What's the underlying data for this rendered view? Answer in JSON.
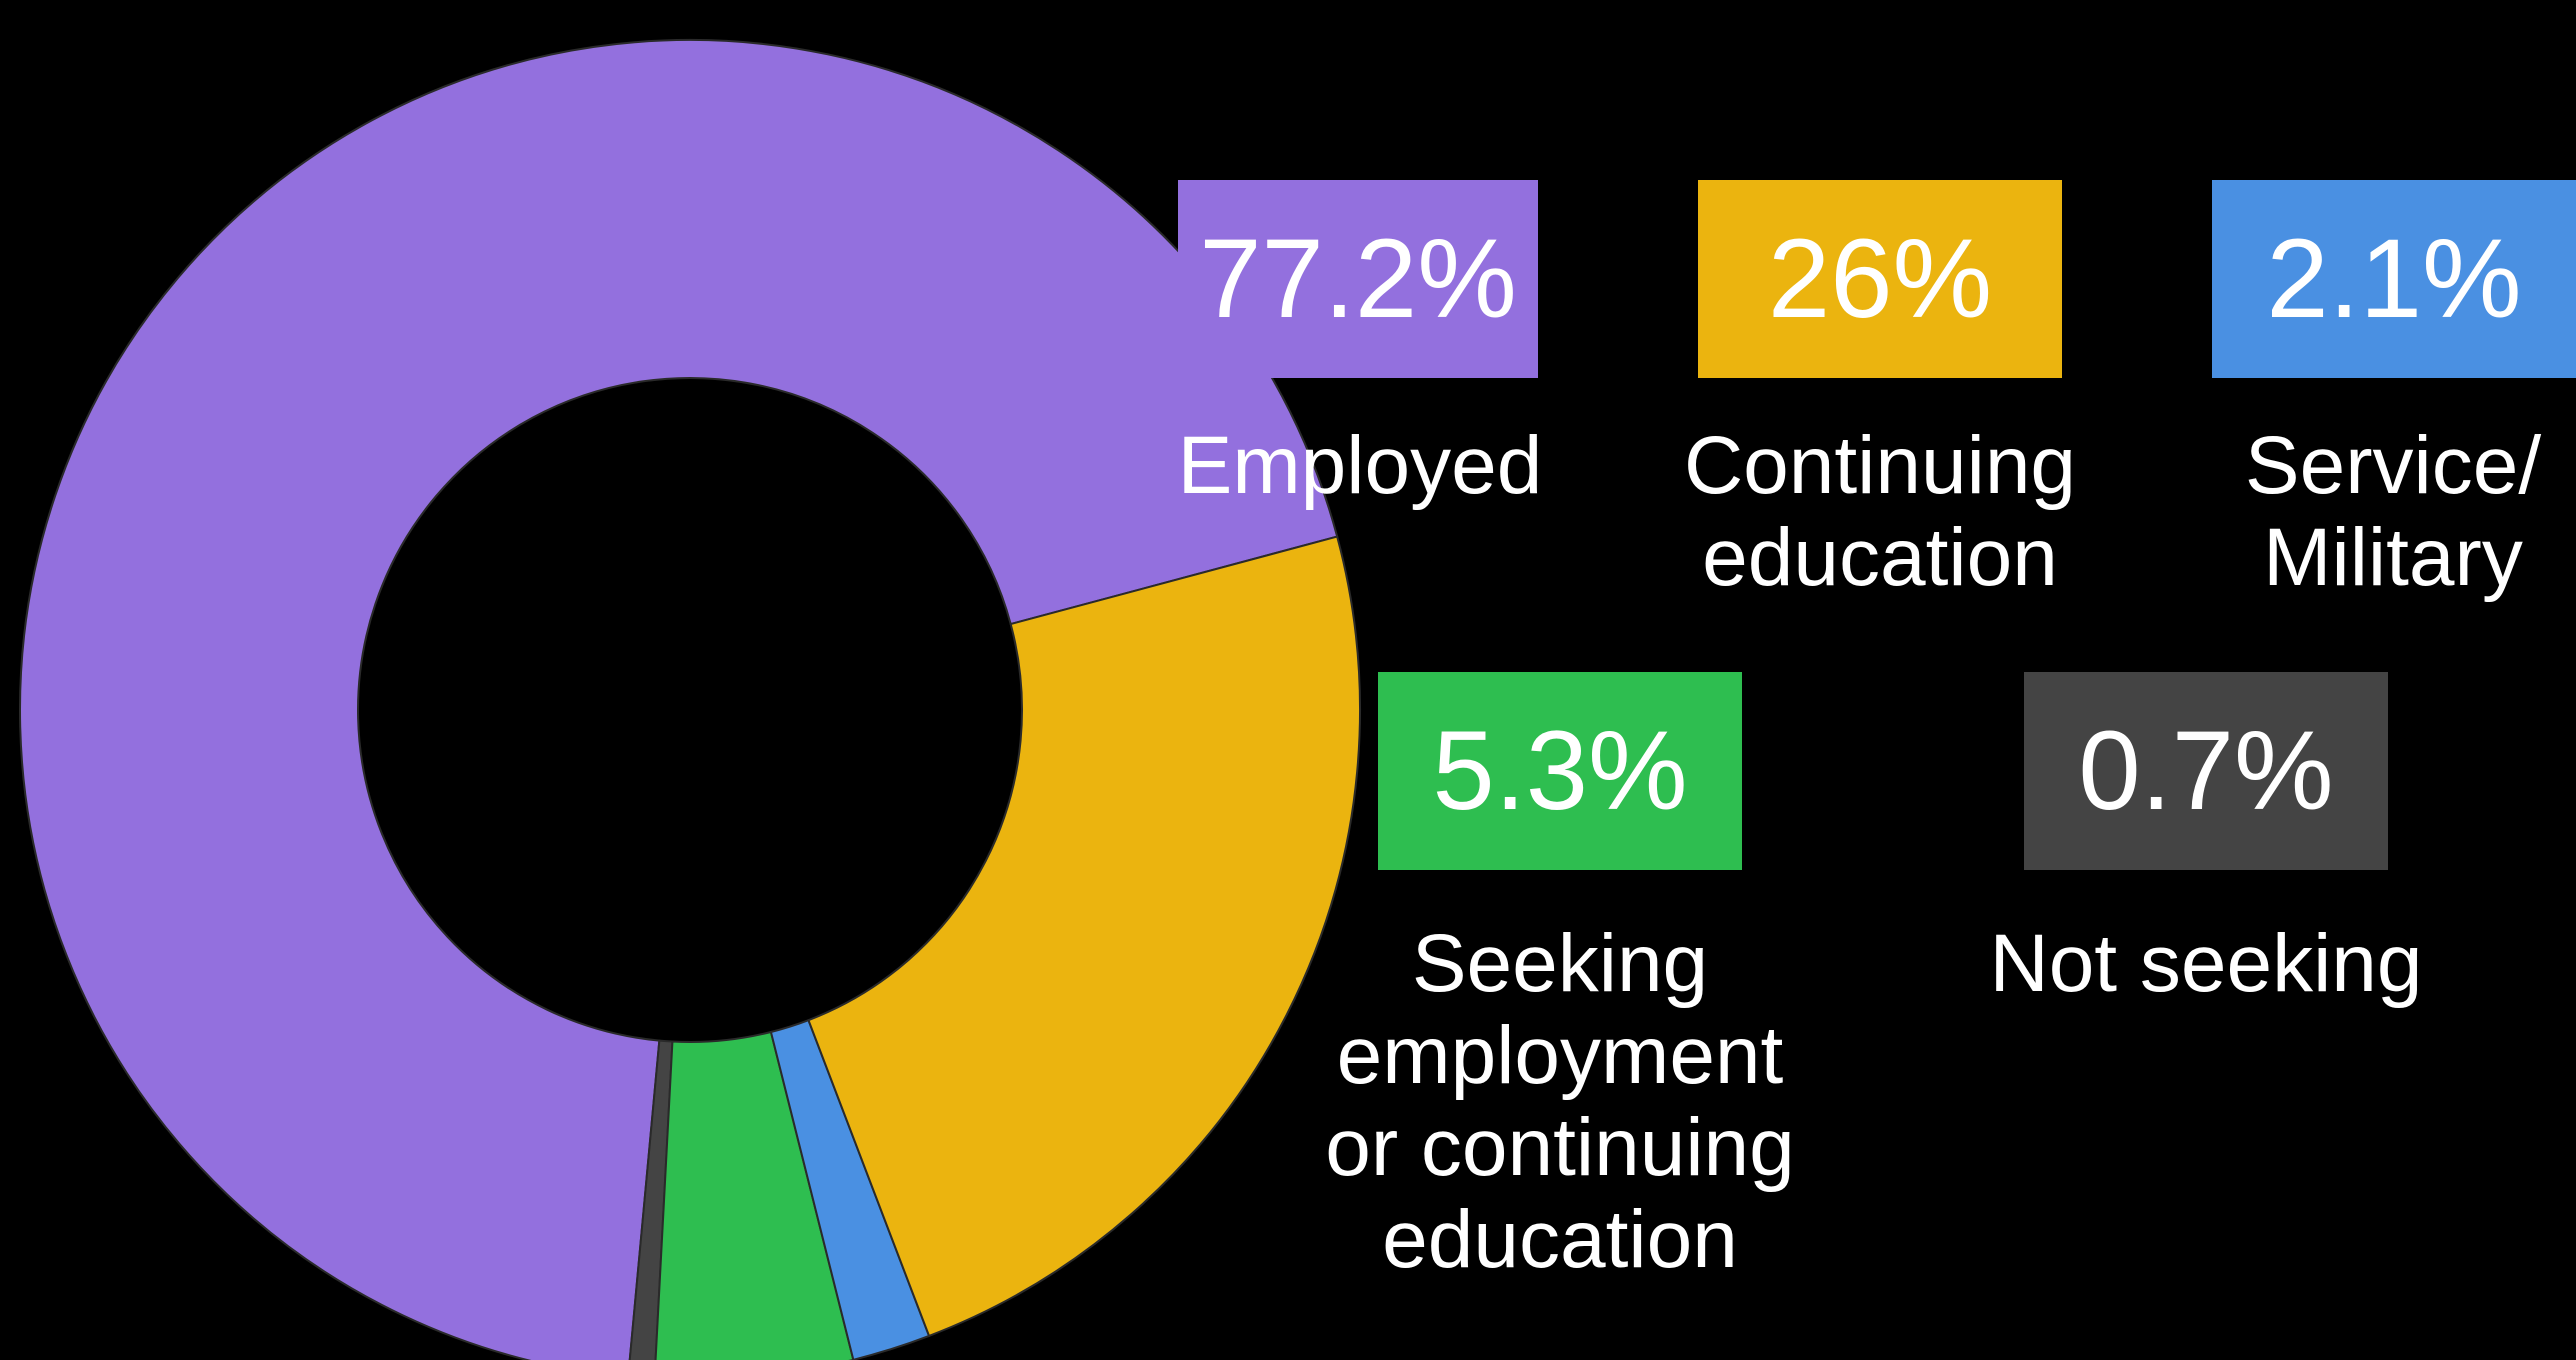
{
  "chart_data": {
    "type": "pie",
    "variant": "donut",
    "title": "",
    "slices": [
      {
        "label": "Employed",
        "value": 77.2,
        "value_label": "77.2%",
        "color": "#9370DE"
      },
      {
        "label": "Continuing education",
        "value": 26,
        "value_label": "26%",
        "color": "#EBB40F"
      },
      {
        "label": "Service/ Military",
        "value": 2.1,
        "value_label": "2.1%",
        "color": "#4A90E2"
      },
      {
        "label": "Seeking employment or continuing education",
        "value": 5.3,
        "value_label": "5.3%",
        "color": "#2EBE50"
      },
      {
        "label": "Not seeking",
        "value": 0.7,
        "value_label": "0.7%",
        "color": "#444444"
      }
    ],
    "legend_position": "right"
  },
  "legend": {
    "employed": {
      "value": "77.2%",
      "lines": [
        "Employed"
      ]
    },
    "continuing": {
      "value": "26%",
      "lines": [
        "Continuing",
        "education"
      ]
    },
    "service": {
      "value": "2.1%",
      "lines": [
        "Service/",
        "Military"
      ]
    },
    "seeking": {
      "value": "5.3%",
      "lines": [
        "Seeking",
        "employment",
        "or continuing",
        "education"
      ]
    },
    "not_seeking": {
      "value": "0.7%",
      "lines": [
        "Not seeking"
      ]
    }
  },
  "colors": {
    "background": "#000000",
    "text": "#FFFFFF",
    "slice_border": "#2A2A2A"
  }
}
